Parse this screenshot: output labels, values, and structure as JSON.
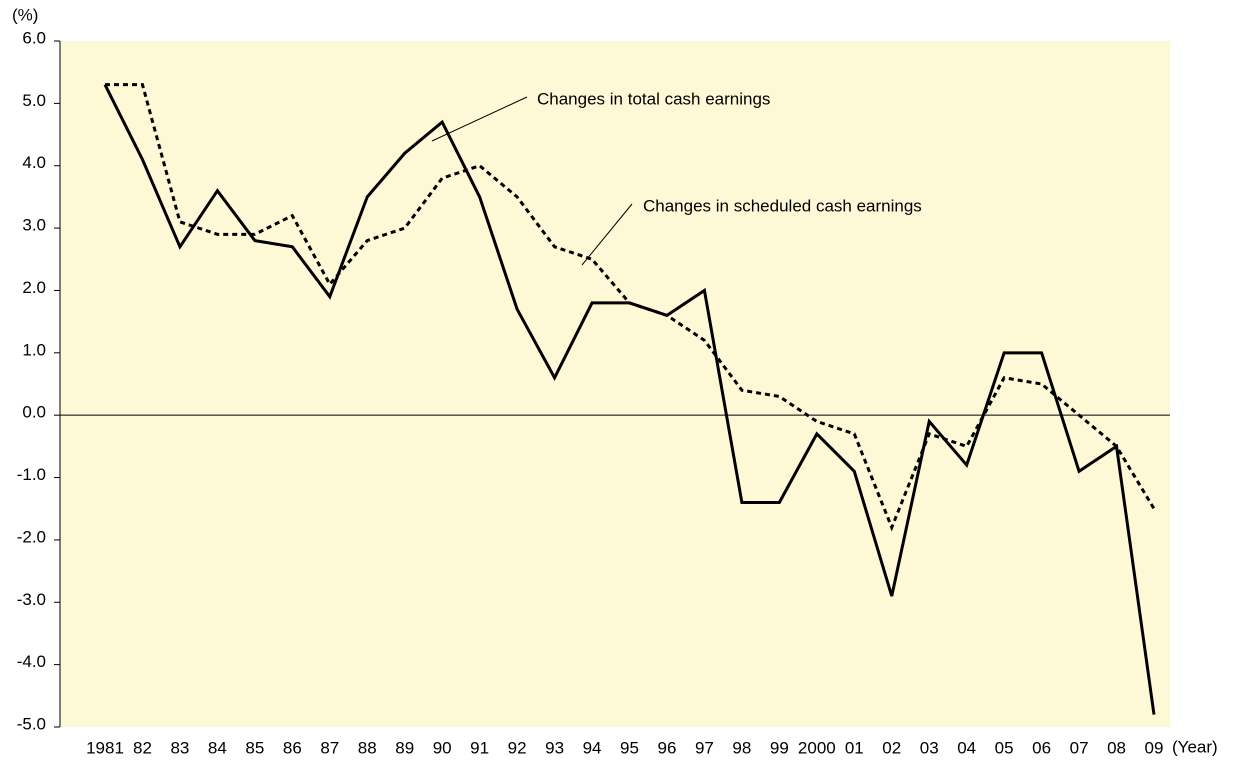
{
  "chart_data": {
    "type": "line",
    "y_unit_label": "(%)",
    "x_unit_label": "(Year)",
    "categories": [
      "1981",
      "82",
      "83",
      "84",
      "85",
      "86",
      "87",
      "88",
      "89",
      "90",
      "91",
      "92",
      "93",
      "94",
      "95",
      "96",
      "97",
      "98",
      "99",
      "2000",
      "01",
      "02",
      "03",
      "04",
      "05",
      "06",
      "07",
      "08",
      "09"
    ],
    "series": [
      {
        "name": "Changes in total cash earnings",
        "color": "#000000",
        "dash": "none",
        "values": [
          5.3,
          4.1,
          2.7,
          3.6,
          2.8,
          2.7,
          1.9,
          3.5,
          4.2,
          4.7,
          3.5,
          1.7,
          0.6,
          1.8,
          1.8,
          1.6,
          2.0,
          -1.4,
          -1.4,
          -0.3,
          -0.9,
          -2.9,
          -0.1,
          -0.8,
          1.0,
          1.0,
          -0.9,
          -0.5,
          -4.8
        ]
      },
      {
        "name": "Changes in scheduled cash earnings",
        "color": "#000000",
        "dash": "5,4",
        "values": [
          5.3,
          5.3,
          3.1,
          2.9,
          2.9,
          3.2,
          2.1,
          2.8,
          3.0,
          3.8,
          4.0,
          3.5,
          2.7,
          2.5,
          1.8,
          1.6,
          1.2,
          0.4,
          0.3,
          -0.1,
          -0.3,
          -1.8,
          -0.3,
          -0.5,
          0.6,
          0.5,
          0.0,
          -0.5,
          -1.5
        ]
      }
    ],
    "ylim": [
      -5,
      6
    ],
    "yticks": [
      {
        "value": 6,
        "label": "6.0"
      },
      {
        "value": 5,
        "label": "5.0"
      },
      {
        "value": 4,
        "label": "4.0"
      },
      {
        "value": 3,
        "label": "3.0"
      },
      {
        "value": 2,
        "label": "2.0"
      },
      {
        "value": 1,
        "label": "1.0"
      },
      {
        "value": 0,
        "label": "0.0"
      },
      {
        "value": -1,
        "label": "-1.0"
      },
      {
        "value": -2,
        "label": "-2.0"
      },
      {
        "value": -3,
        "label": "-3.0"
      },
      {
        "value": -4,
        "label": "-4.0"
      },
      {
        "value": -5,
        "label": "-5.0"
      }
    ],
    "background": "#fdf8d6",
    "legend": "annotation"
  }
}
